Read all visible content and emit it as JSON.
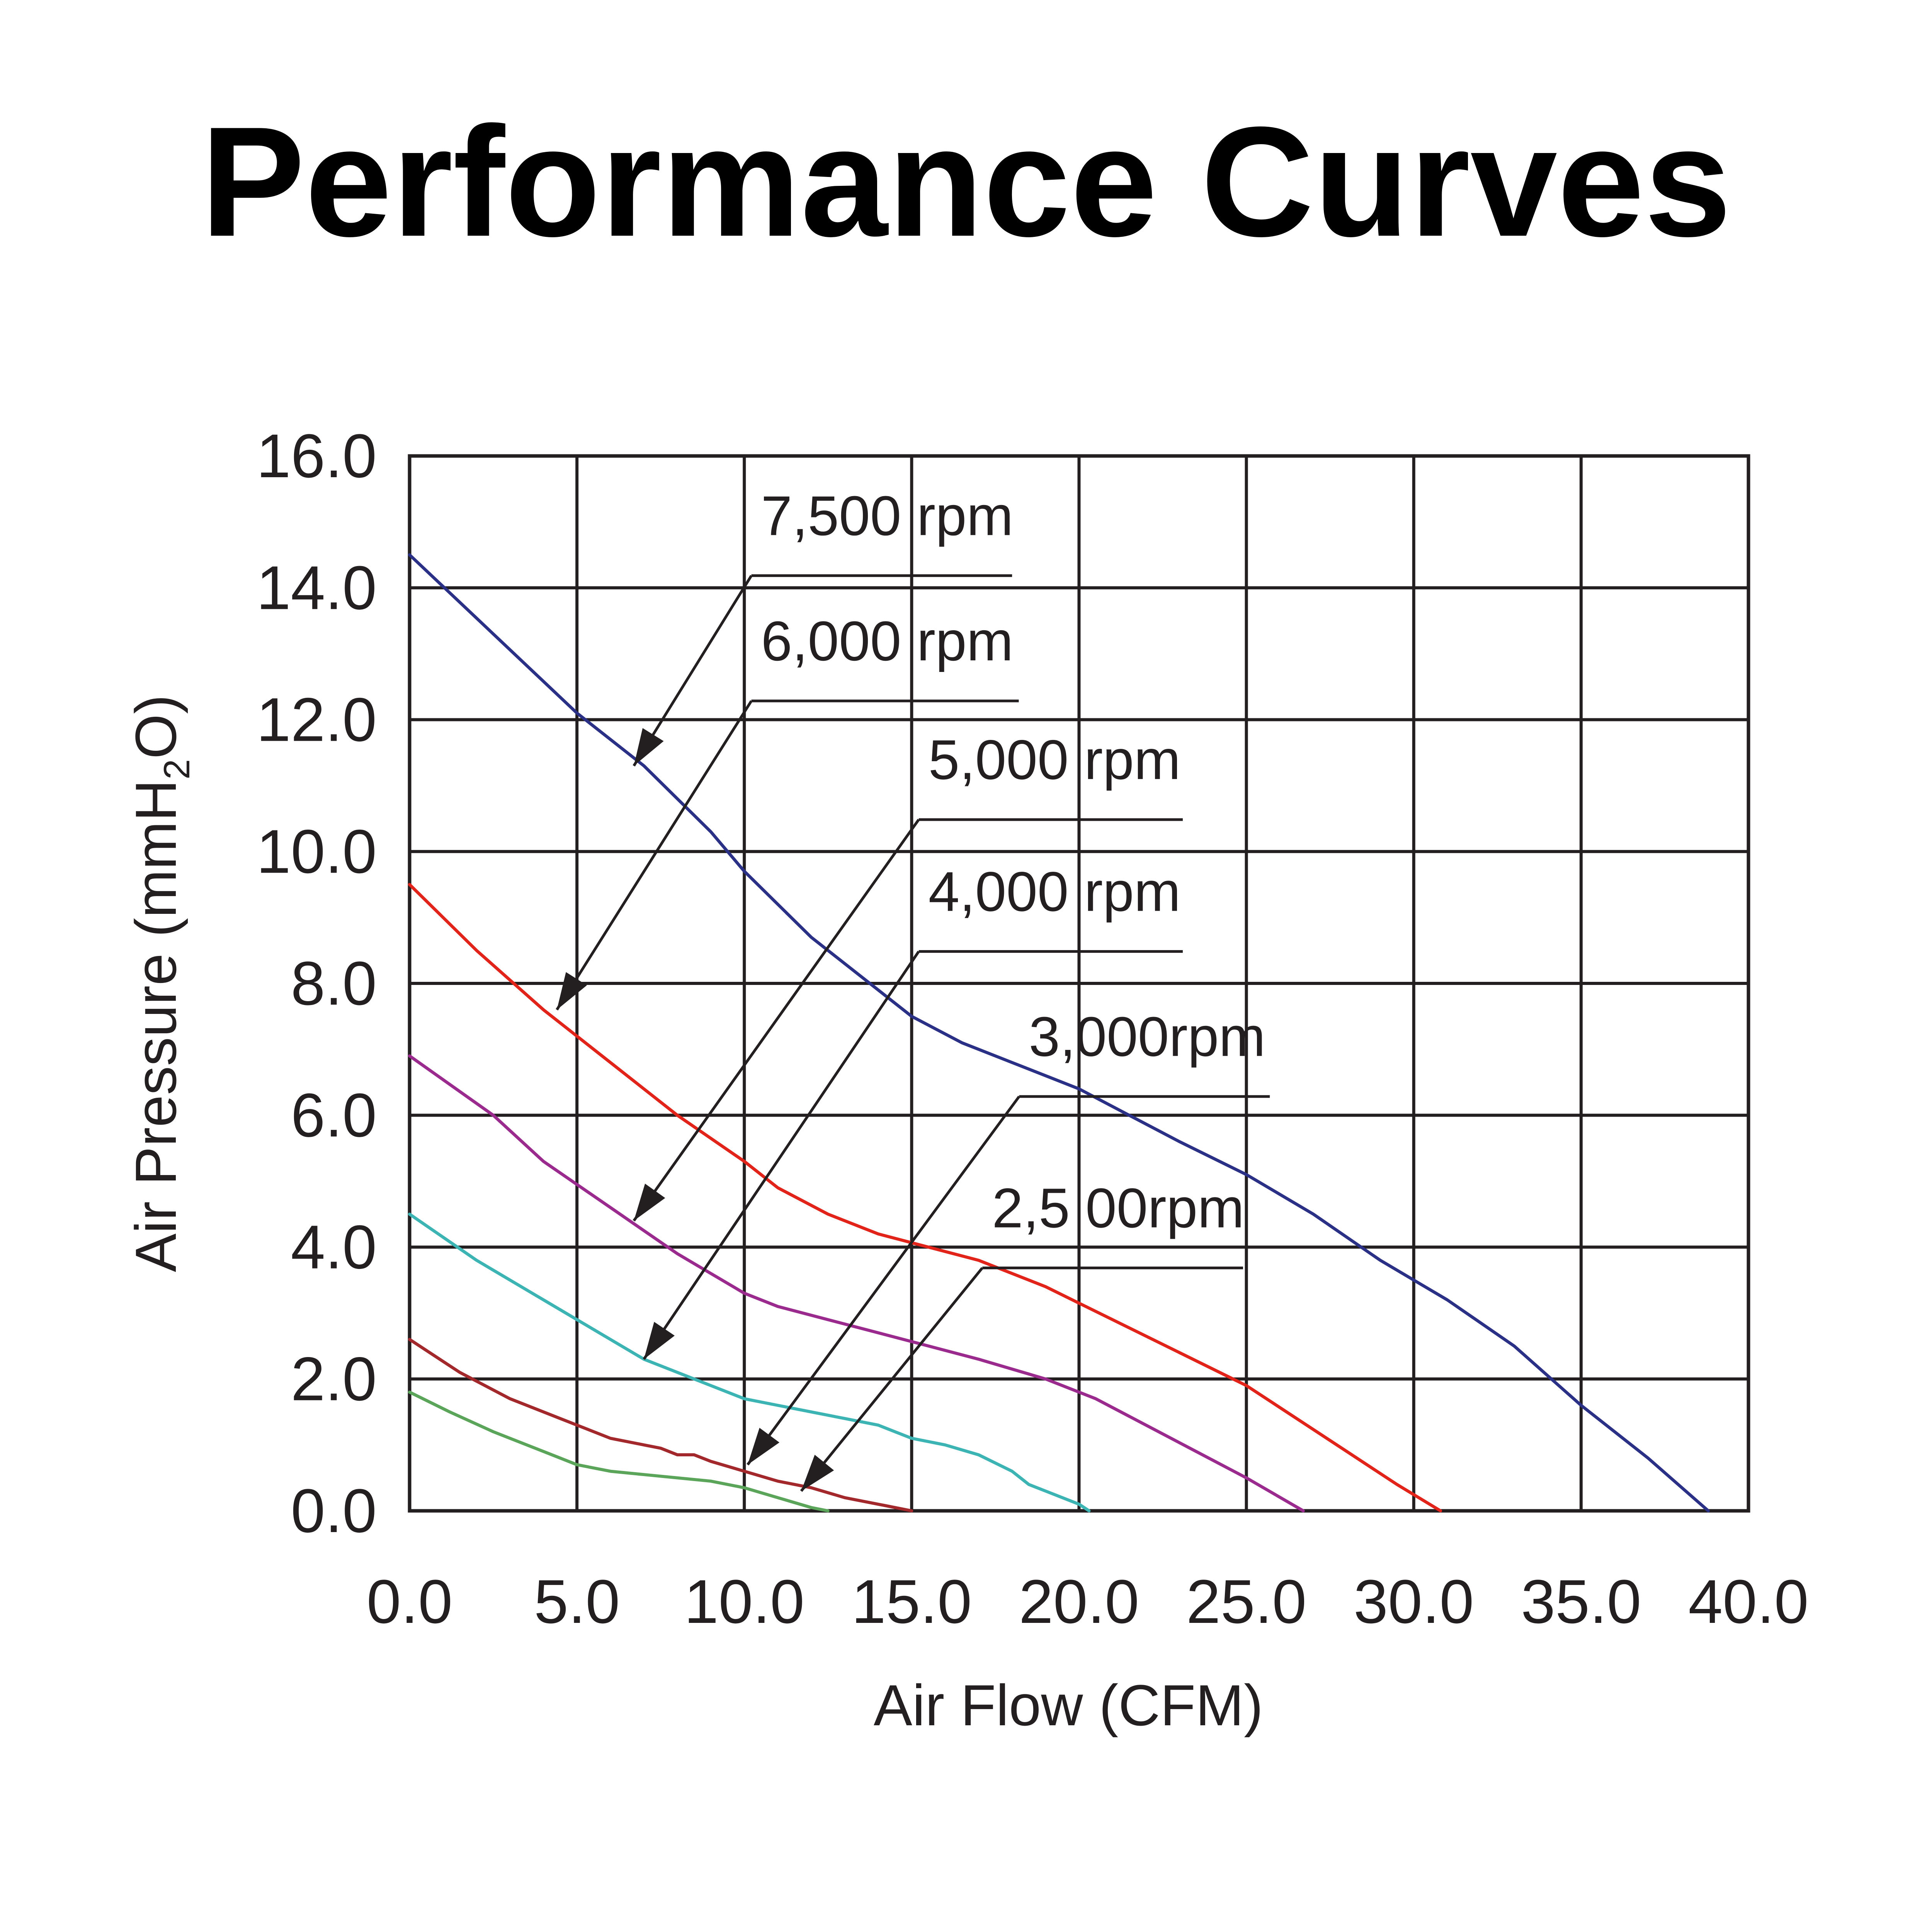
{
  "chart_data": {
    "type": "line",
    "title": "Performance Curves",
    "xlabel": "Air Flow (CFM)",
    "ylabel_prefix": "Air Pressure (mmH",
    "ylabel_sub": "2",
    "ylabel_suffix": "O)",
    "xlim": [
      0,
      40
    ],
    "ylim": [
      0,
      16
    ],
    "grid": true,
    "x_ticks": [
      0,
      5,
      10,
      15,
      20,
      25,
      30,
      35,
      40
    ],
    "y_ticks": [
      0,
      2,
      4,
      6,
      8,
      10,
      12,
      14,
      16
    ],
    "x_tick_labels": [
      "0.0",
      "5.0",
      "10.0",
      "15.0",
      "20.0",
      "25.0",
      "30.0",
      "35.0",
      "40.0"
    ],
    "y_tick_labels": [
      "0.0",
      "2.0",
      "4.0",
      "6.0",
      "8.0",
      "10.0",
      "12.0",
      "14.0",
      "16.0"
    ],
    "series": [
      {
        "name": "7,500 rpm",
        "color": "#2b3087",
        "x": [
          0,
          5,
          7,
          9,
          10,
          12,
          13.5,
          15,
          16.5,
          18,
          19,
          20,
          21.5,
          23,
          25,
          27,
          29,
          31,
          33,
          35,
          37,
          38.8
        ],
        "y": [
          14.5,
          12.1,
          11.3,
          10.3,
          9.7,
          8.7,
          8.1,
          7.5,
          7.1,
          6.8,
          6.6,
          6.4,
          6.0,
          5.6,
          5.1,
          4.5,
          3.8,
          3.2,
          2.5,
          1.6,
          0.8,
          0.0
        ]
      },
      {
        "name": "6,000 rpm",
        "color": "#e2231a",
        "x": [
          0,
          2,
          4,
          6,
          8,
          10,
          11,
          12.5,
          14,
          15.5,
          17,
          19,
          21,
          23,
          25,
          26.5,
          28,
          29.5,
          30.8
        ],
        "y": [
          9.5,
          8.5,
          7.6,
          6.8,
          6.0,
          5.3,
          4.9,
          4.5,
          4.2,
          4.0,
          3.8,
          3.4,
          2.9,
          2.4,
          1.9,
          1.4,
          0.9,
          0.4,
          0.0
        ]
      },
      {
        "name": "5,000 rpm",
        "color": "#9a2a8d",
        "x": [
          0,
          2.5,
          4,
          6,
          8,
          10,
          11,
          12.5,
          14,
          15.5,
          17,
          19,
          20.5,
          22,
          23.5,
          25,
          26.7
        ],
        "y": [
          6.9,
          6.0,
          5.3,
          4.6,
          3.9,
          3.3,
          3.1,
          2.9,
          2.7,
          2.5,
          2.3,
          2.0,
          1.7,
          1.3,
          0.9,
          0.5,
          0.0
        ]
      },
      {
        "name": "4,000 rpm",
        "color": "#3cb4b4",
        "x": [
          0,
          2,
          4,
          5,
          6,
          7,
          8,
          9,
          10,
          11,
          12,
          13,
          14,
          15,
          16,
          17,
          18,
          18.5,
          19,
          20,
          20.3
        ],
        "y": [
          4.5,
          3.8,
          3.2,
          2.9,
          2.6,
          2.3,
          2.1,
          1.9,
          1.7,
          1.6,
          1.5,
          1.4,
          1.3,
          1.1,
          1.0,
          0.85,
          0.6,
          0.4,
          0.3,
          0.1,
          0.0
        ]
      },
      {
        "name": "3,000rpm",
        "color": "#a3282c",
        "x": [
          0,
          1.5,
          3,
          4.5,
          6,
          7,
          7.5,
          8,
          8.5,
          9,
          10,
          11,
          12,
          13,
          14,
          15
        ],
        "y": [
          2.6,
          2.1,
          1.7,
          1.4,
          1.1,
          1.0,
          0.95,
          0.85,
          0.85,
          0.75,
          0.6,
          0.45,
          0.35,
          0.2,
          0.1,
          0.0
        ]
      },
      {
        "name": "2,5 00rpm",
        "color": "#5aa55a",
        "x": [
          0,
          1.2,
          2.5,
          4,
          5,
          6,
          7,
          8,
          9,
          10,
          11,
          12,
          12.5
        ],
        "y": [
          1.8,
          1.5,
          1.2,
          0.9,
          0.7,
          0.6,
          0.55,
          0.5,
          0.45,
          0.35,
          0.2,
          0.05,
          0.0
        ]
      }
    ],
    "annotations": [
      {
        "text": "7,500 rpm",
        "series": "7,500 rpm",
        "label_x": 10.5,
        "label_y": 14.8,
        "underline_end_x": 18,
        "arrow_to_x": 6.7,
        "arrow_to_y": 11.3
      },
      {
        "text": "6,000 rpm",
        "series": "6,000 rpm",
        "label_x": 10.5,
        "label_y": 12.9,
        "underline_end_x": 18.2,
        "arrow_to_x": 4.4,
        "arrow_to_y": 7.6
      },
      {
        "text": "5,000 rpm",
        "series": "5,000 rpm",
        "label_x": 15.5,
        "label_y": 11.1,
        "underline_end_x": 23.1,
        "arrow_to_x": 6.7,
        "arrow_to_y": 4.4
      },
      {
        "text": "4,000 rpm",
        "series": "4,000 rpm",
        "label_x": 15.5,
        "label_y": 9.1,
        "underline_end_x": 23.1,
        "arrow_to_x": 7.0,
        "arrow_to_y": 2.3
      },
      {
        "text": "3,000rpm",
        "series": "3,000rpm",
        "label_x": 18.5,
        "label_y": 6.9,
        "underline_end_x": 25.7,
        "arrow_to_x": 10.1,
        "arrow_to_y": 0.7
      },
      {
        "text": "2,5 00rpm",
        "series": "2,5 00rpm",
        "label_x": 17.4,
        "label_y": 4.3,
        "underline_end_x": 24.9,
        "arrow_to_x": 11.7,
        "arrow_to_y": 0.3
      }
    ]
  }
}
